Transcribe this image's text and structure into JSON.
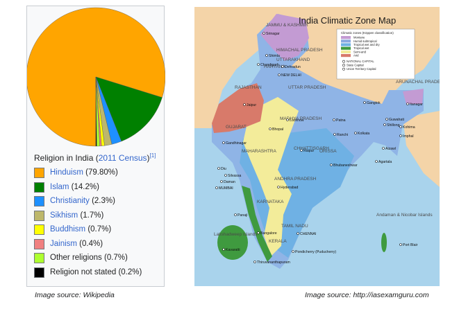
{
  "pie": {
    "slices": [
      {
        "name": "Hinduism",
        "value": 79.8,
        "color": "#ffa500"
      },
      {
        "name": "Islam",
        "value": 14.2,
        "color": "#008000"
      },
      {
        "name": "Christianity",
        "value": 2.3,
        "color": "#1e90ff"
      },
      {
        "name": "Sikhism",
        "value": 1.7,
        "color": "#bdb76b"
      },
      {
        "name": "Buddhism",
        "value": 0.7,
        "color": "#ffff00"
      },
      {
        "name": "Jainism",
        "value": 0.4,
        "color": "#f08080"
      },
      {
        "name": "Other religions",
        "value": 0.7,
        "color": "#adff2f"
      },
      {
        "name": "Religion not stated",
        "value": 0.2,
        "color": "#000000"
      }
    ]
  },
  "caption": {
    "prefix": "Religion in India (",
    "link": "2011 Census",
    "suffix": ")",
    "ref": "[1]"
  },
  "legend": [
    {
      "name": "Hinduism",
      "pct": " (79.80%)",
      "color": "#ffa500",
      "link": true
    },
    {
      "name": "Islam",
      "pct": " (14.2%)",
      "color": "#008000",
      "link": true
    },
    {
      "name": "Christianity",
      "pct": " (2.3%)",
      "color": "#1e90ff",
      "link": true
    },
    {
      "name": "Sikhism",
      "pct": " (1.7%)",
      "color": "#bdb76b",
      "link": true
    },
    {
      "name": "Buddhism",
      "pct": " (0.7%)",
      "color": "#ffff00",
      "link": true
    },
    {
      "name": "Jainism",
      "pct": " (0.4%)",
      "color": "#f08080",
      "link": true
    },
    {
      "name": "Other religions",
      "pct": " (0.7%)",
      "color": "#adff2f",
      "link": false
    },
    {
      "name": "Religion not stated",
      "pct": " (0.2%)",
      "color": "#000000",
      "link": false
    }
  ],
  "sources": {
    "left": "Image source: Wikipedia",
    "right": "Image source: http://iasexamguru.com"
  },
  "map": {
    "title": "India Climatic Zone Map",
    "legend_title": "Climatic zones (Köppen classification)",
    "zones": [
      {
        "name": "Montane",
        "color": "#c39bd3"
      },
      {
        "name": "Humid subtropical",
        "color": "#8aa8e0"
      },
      {
        "name": "Tropical wet and dry",
        "color": "#6fb1e4"
      },
      {
        "name": "Tropical wet",
        "color": "#3f9a3f"
      },
      {
        "name": "Semi-arid",
        "color": "#f3ec9a"
      },
      {
        "name": "Arid",
        "color": "#d87a6a"
      }
    ],
    "symbols": [
      "NATIONAL CAPITAL",
      "State Capital",
      "Union Territory Capital"
    ],
    "regions": [
      "JAMMU & KASHMIR",
      "HIMACHAL PRADESH",
      "UTTARAKHAND",
      "HARYANA",
      "RAJASTHAN",
      "UTTAR PRADESH",
      "MADHYA PRADESH",
      "GUJARAT",
      "MAHARASHTRA",
      "CHHATTISGARH",
      "ORISSA",
      "ANDHRA PRADESH",
      "KARNATAKA",
      "TAMIL NADU",
      "KERALA",
      "ARUNACHAL PRADESH",
      "Andaman & Nicobar Islands",
      "Lakshadweep Islands"
    ],
    "cities": [
      "Srinagar",
      "Shimla",
      "Chandigarh",
      "Dehradun",
      "NEW DELHI",
      "Jaipur",
      "Lucknow",
      "Gandhinagar",
      "Bhopal",
      "Patna",
      "Ranchi",
      "Kolkata",
      "Raipur",
      "Bhubaneshwar",
      "Diu",
      "Silvassa",
      "Daman",
      "MUMBAI",
      "Hyderabad",
      "Panaji",
      "Bangalore",
      "CHENNAI",
      "Pondicherry (Puducherry)",
      "Kavaratti",
      "Thiruvananthapuram",
      "Port Blair",
      "Gangtok",
      "Itanagar",
      "Guwahati",
      "Shillong",
      "Kohima",
      "Imphal",
      "Aizawl",
      "Agartala"
    ]
  }
}
